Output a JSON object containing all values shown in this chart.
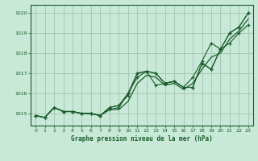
{
  "title": "Graphe pression niveau de la mer (hPa)",
  "bg_color": "#c8e8d8",
  "grid_color": "#a8c8b8",
  "line_color": "#1a5c2a",
  "x_min": -0.5,
  "x_max": 23.5,
  "y_min": 1014.4,
  "y_max": 1020.4,
  "yticks": [
    1015,
    1016,
    1017,
    1018,
    1019,
    1020
  ],
  "xticks": [
    0,
    1,
    2,
    3,
    4,
    5,
    6,
    7,
    8,
    9,
    10,
    11,
    12,
    13,
    14,
    15,
    16,
    17,
    18,
    19,
    20,
    21,
    22,
    23
  ],
  "series": [
    [
      1014.9,
      1014.8,
      1015.3,
      1015.1,
      1015.1,
      1015.0,
      1015.0,
      1014.9,
      1015.2,
      1015.3,
      1016.0,
      1016.8,
      1017.1,
      1017.0,
      1016.5,
      1016.6,
      1016.3,
      1016.3,
      1017.5,
      1017.2,
      1018.2,
      1019.0,
      1019.3,
      1020.0
    ],
    [
      1014.9,
      1014.8,
      1015.3,
      1015.1,
      1015.1,
      1015.0,
      1015.0,
      1014.9,
      1015.3,
      1015.4,
      1015.9,
      1017.0,
      1017.1,
      1016.4,
      1016.5,
      1016.6,
      1016.3,
      1016.8,
      1017.6,
      1018.5,
      1018.2,
      1018.5,
      1019.0,
      1019.4
    ],
    [
      1014.9,
      1014.8,
      1015.3,
      1015.1,
      1015.1,
      1015.0,
      1015.0,
      1014.9,
      1015.3,
      1015.4,
      1016.0,
      1017.0,
      1017.1,
      1017.0,
      1016.5,
      1016.6,
      1016.3,
      1016.3,
      1017.5,
      1017.2,
      1018.2,
      1019.0,
      1019.3,
      1020.0
    ],
    [
      1014.9,
      1014.8,
      1015.3,
      1015.1,
      1015.1,
      1015.0,
      1015.0,
      1014.9,
      1015.2,
      1015.2,
      1015.6,
      1016.5,
      1016.9,
      1016.8,
      1016.4,
      1016.5,
      1016.2,
      1016.5,
      1017.2,
      1017.8,
      1018.0,
      1018.7,
      1019.1,
      1019.7
    ]
  ]
}
